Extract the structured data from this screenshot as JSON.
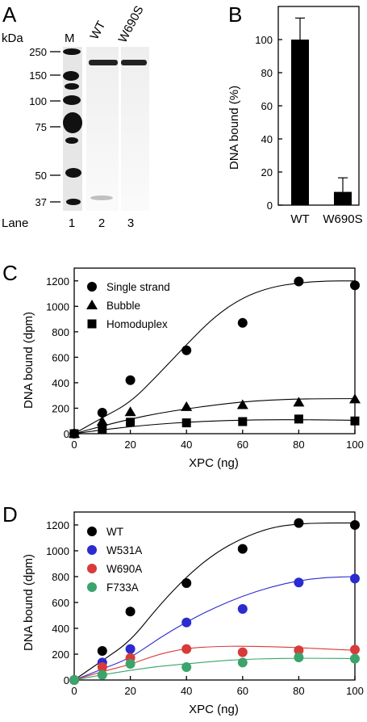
{
  "panels": {
    "A": {
      "letter": "A",
      "unit": "kDa",
      "marker_lane": "M",
      "lane_headers": [
        "WT",
        "W690S"
      ],
      "markers": [
        "250",
        "150",
        "100",
        "75",
        "50",
        "37"
      ],
      "lane_word": "Lane",
      "lane_numbers": [
        "1",
        "2",
        "3"
      ]
    }
  },
  "chart_data": [
    {
      "panel": "B",
      "letter": "B",
      "type": "bar",
      "categories": [
        "WT",
        "W690S"
      ],
      "values": [
        100,
        8
      ],
      "errors": [
        13,
        8.5
      ],
      "ylabel": "DNA bound (%)",
      "xlabel": "",
      "ylim": [
        0,
        120
      ],
      "yticks": [
        0,
        20,
        40,
        60,
        80,
        100
      ],
      "color": "#000000"
    },
    {
      "panel": "C",
      "letter": "C",
      "type": "scatter",
      "xlabel": "XPC (ng)",
      "ylabel": "DNA bound (dpm)",
      "xlim": [
        0,
        100
      ],
      "ylim": [
        0,
        1300
      ],
      "xticks": [
        0,
        20,
        40,
        60,
        80,
        100
      ],
      "yticks": [
        0,
        200,
        400,
        600,
        800,
        1000,
        1200
      ],
      "legend_position": "top-left",
      "series": [
        {
          "name": "Single strand",
          "marker": "circle",
          "color": "#000000",
          "x": [
            0,
            10,
            20,
            40,
            60,
            80,
            100
          ],
          "y": [
            0,
            165,
            420,
            655,
            870,
            1195,
            1165
          ],
          "fit": [
            0,
            125,
            245,
            465,
            700,
            920,
            1070,
            1150,
            1185,
            1200,
            1200
          ]
        },
        {
          "name": "Bubble",
          "marker": "triangle",
          "color": "#000000",
          "x": [
            0,
            10,
            20,
            40,
            60,
            80,
            100
          ],
          "y": [
            0,
            95,
            170,
            210,
            225,
            245,
            270
          ],
          "fit": [
            0,
            60,
            115,
            160,
            195,
            225,
            250,
            265,
            272,
            275,
            275
          ]
        },
        {
          "name": "Homoduplex",
          "marker": "square",
          "color": "#000000",
          "x": [
            0,
            10,
            20,
            40,
            60,
            80,
            100
          ],
          "y": [
            0,
            35,
            90,
            85,
            95,
            115,
            100
          ],
          "fit": [
            0,
            30,
            55,
            75,
            90,
            100,
            107,
            110,
            110,
            108,
            105
          ]
        }
      ]
    },
    {
      "panel": "D",
      "letter": "D",
      "type": "scatter",
      "xlabel": "XPC (ng)",
      "ylabel": "DNA bound (dpm)",
      "xlim": [
        0,
        100
      ],
      "ylim": [
        0,
        1300
      ],
      "xticks": [
        0,
        20,
        40,
        60,
        80,
        100
      ],
      "yticks": [
        0,
        200,
        400,
        600,
        800,
        1000,
        1200
      ],
      "legend_position": "top-left",
      "series": [
        {
          "name": "WT",
          "marker": "circle",
          "color": "#000000",
          "x": [
            0,
            10,
            20,
            40,
            60,
            80,
            100
          ],
          "y": [
            0,
            225,
            530,
            750,
            1015,
            1215,
            1200
          ],
          "fit": [
            0,
            150,
            300,
            570,
            800,
            980,
            1100,
            1180,
            1210,
            1215,
            1215
          ]
        },
        {
          "name": "W531A",
          "marker": "circle",
          "color": "#2b2bcf",
          "x": [
            0,
            10,
            20,
            40,
            60,
            80,
            100
          ],
          "y": [
            0,
            135,
            240,
            445,
            550,
            755,
            785
          ],
          "fit": [
            0,
            85,
            170,
            320,
            450,
            560,
            650,
            720,
            770,
            795,
            800
          ]
        },
        {
          "name": "W690A",
          "marker": "circle",
          "color": "#d93a3a",
          "x": [
            0,
            10,
            20,
            40,
            60,
            80,
            100
          ],
          "y": [
            0,
            100,
            170,
            240,
            215,
            230,
            235
          ],
          "fit": [
            0,
            65,
            120,
            200,
            245,
            260,
            262,
            258,
            250,
            240,
            230
          ]
        },
        {
          "name": "F733A",
          "marker": "circle",
          "color": "#3aa46b",
          "x": [
            0,
            10,
            20,
            40,
            60,
            80,
            100
          ],
          "y": [
            0,
            40,
            125,
            100,
            135,
            175,
            165
          ],
          "fit": [
            0,
            40,
            75,
            105,
            125,
            145,
            160,
            165,
            168,
            168,
            165
          ]
        }
      ]
    }
  ]
}
